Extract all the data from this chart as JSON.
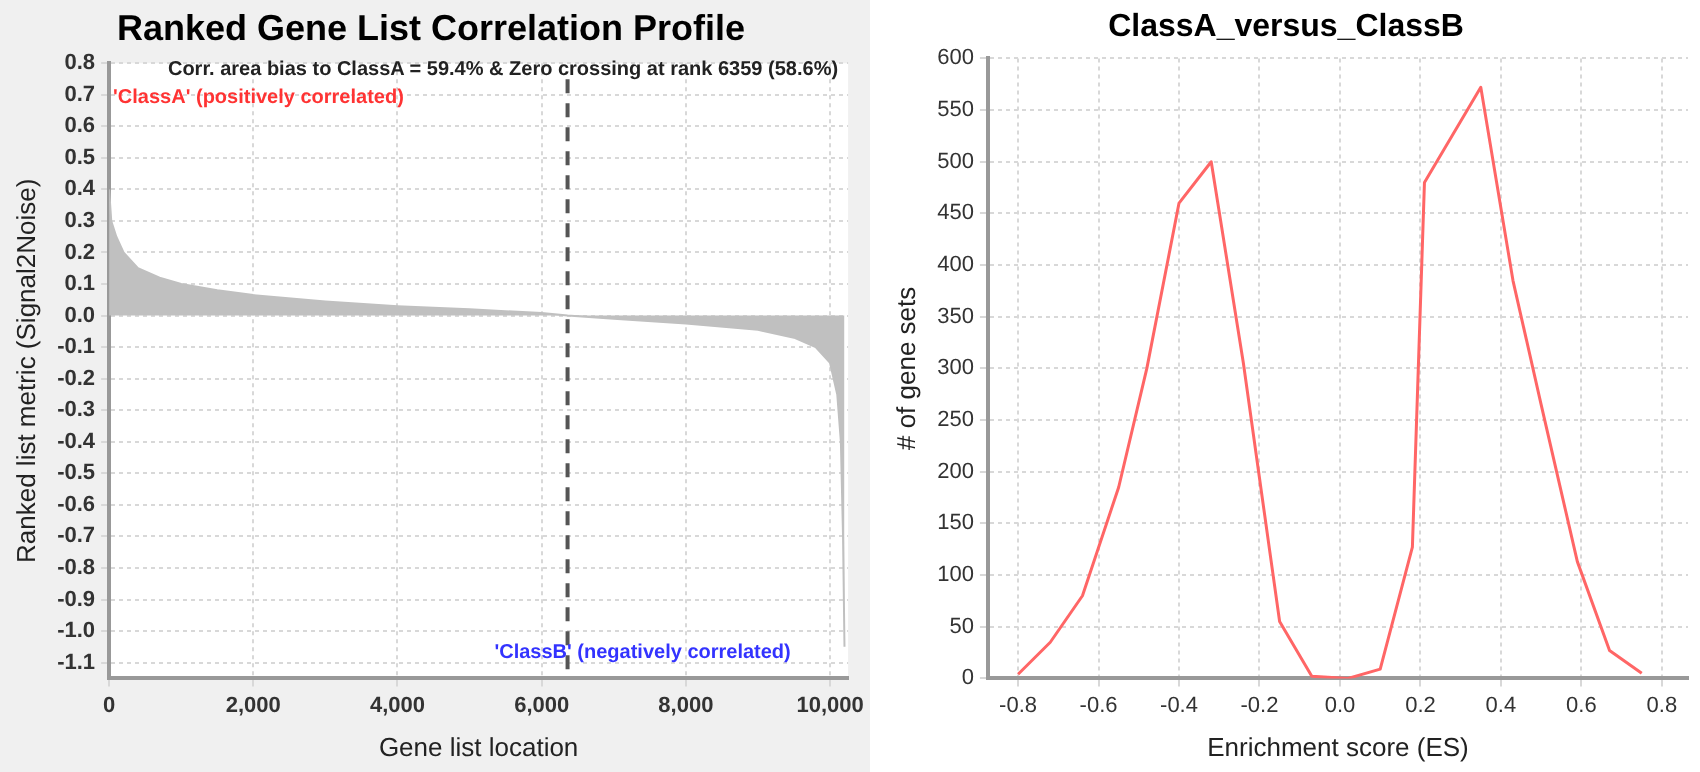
{
  "chart_data": [
    {
      "type": "area",
      "title": "Ranked Gene List Correlation Profile",
      "xlabel": "Gene list location",
      "ylabel": "Ranked list metric (Signal2Noise)",
      "x": [
        0,
        30,
        100,
        200,
        400,
        700,
        1000,
        1500,
        2000,
        3000,
        4000,
        5000,
        6000,
        6359,
        7000,
        8000,
        9000,
        9500,
        9800,
        10000,
        10100,
        10150,
        10180,
        10200
      ],
      "series": [
        {
          "color": "#c0c0c0",
          "values": [
            0.4,
            0.3,
            0.25,
            0.2,
            0.15,
            0.12,
            0.1,
            0.08,
            0.065,
            0.045,
            0.03,
            0.02,
            0.008,
            0,
            -0.01,
            -0.025,
            -0.045,
            -0.07,
            -0.1,
            -0.15,
            -0.25,
            -0.4,
            -0.7,
            -1.05
          ]
        }
      ],
      "xlim": [
        0,
        10250
      ],
      "xticks": [
        0,
        {
          "value": 2000,
          "label": "2,000"
        },
        {
          "value": 4000,
          "label": "4,000"
        },
        {
          "value": 6000,
          "label": "6,000"
        },
        {
          "value": 8000,
          "label": "8,000"
        },
        {
          "value": 10000,
          "label": "10,000"
        }
      ],
      "ylim": [
        -1.15,
        0.8
      ],
      "yticks": [
        0.8,
        0.7,
        0.6,
        0.5,
        0.4,
        0.3,
        0.2,
        0.1,
        {
          "value": 0,
          "label": "0.0"
        },
        -0.1,
        -0.2,
        -0.3,
        -0.4,
        -0.5,
        -0.6,
        -0.7,
        -0.8,
        -0.9,
        {
          "value": -1,
          "label": "-1.0"
        },
        -1.1
      ],
      "ref_lines": [
        {
          "axis": "x",
          "value": 6359,
          "color": "#555555",
          "line_style": "dashed"
        }
      ],
      "annotations": [
        "Corr. area bias to ClassA = 59.4% & Zero crossing at rank 6359 (58.6%)",
        "'ClassA' (positively correlated)",
        "'ClassB' (negatively correlated)"
      ],
      "grid": true,
      "legend": false,
      "marker": "none"
    },
    {
      "type": "line",
      "title": "ClassA_versus_ClassB",
      "xlabel": "Enrichment score (ES)",
      "ylabel": "# of gene sets",
      "x": [
        -0.8,
        -0.72,
        -0.64,
        -0.55,
        -0.48,
        -0.4,
        -0.32,
        -0.24,
        -0.15,
        -0.07,
        0.02,
        0.1,
        0.18,
        0.21,
        0.35,
        0.43,
        0.5,
        0.59,
        0.67,
        0.75
      ],
      "series": [
        {
          "color": "#ff6666",
          "values": [
            4,
            35,
            80,
            185,
            300,
            460,
            500,
            305,
            55,
            2,
            0,
            9,
            127,
            480,
            572,
            385,
            265,
            113,
            27,
            5
          ]
        }
      ],
      "xlim": [
        -0.875,
        0.865
      ],
      "xticks": [
        -0.8,
        -0.6,
        -0.4,
        -0.2,
        {
          "value": 0,
          "label": "0.0"
        },
        0.2,
        0.4,
        0.6,
        0.8
      ],
      "ylim": [
        0,
        600
      ],
      "yticks": [
        0,
        50,
        100,
        150,
        200,
        250,
        300,
        350,
        400,
        450,
        500,
        550,
        600
      ],
      "grid": true,
      "legend": false,
      "marker": "none",
      "line_style": "solid"
    }
  ]
}
